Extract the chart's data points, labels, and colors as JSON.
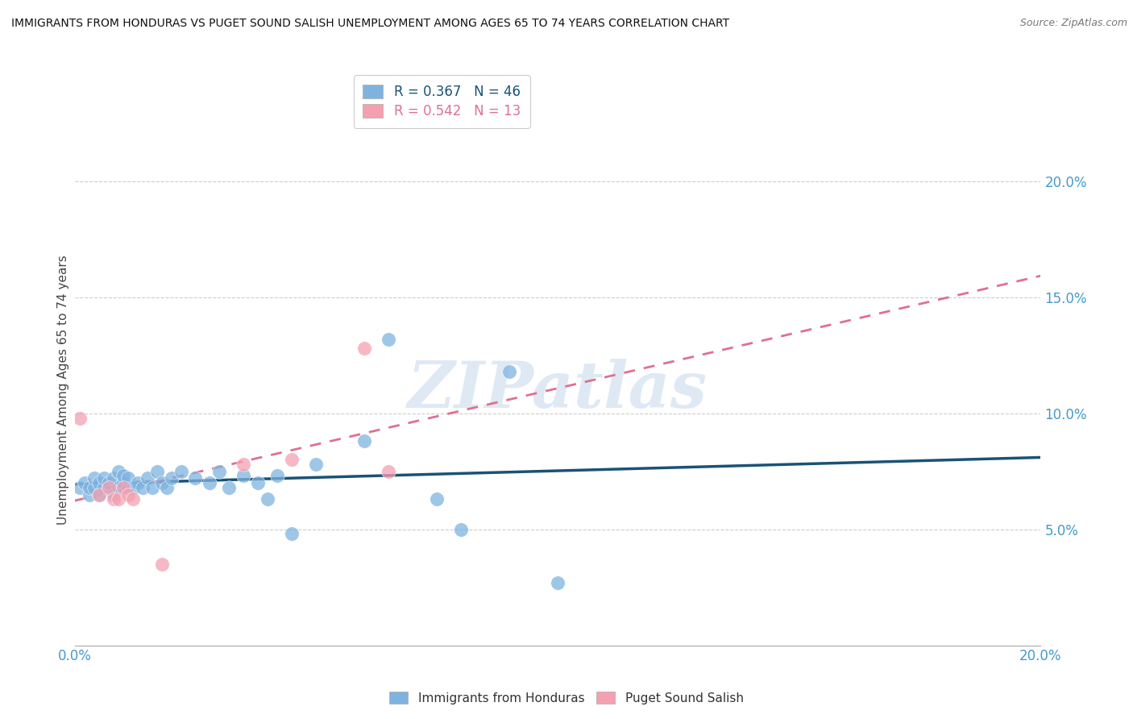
{
  "title": "IMMIGRANTS FROM HONDURAS VS PUGET SOUND SALISH UNEMPLOYMENT AMONG AGES 65 TO 74 YEARS CORRELATION CHART",
  "source": "Source: ZipAtlas.com",
  "ylabel": "Unemployment Among Ages 65 to 74 years",
  "xlim": [
    0.0,
    0.2
  ],
  "ylim": [
    0.0,
    0.22
  ],
  "yticks": [
    0.05,
    0.1,
    0.15,
    0.2
  ],
  "ytick_labels": [
    "5.0%",
    "10.0%",
    "15.0%",
    "20.0%"
  ],
  "blue_R": 0.367,
  "blue_N": 46,
  "pink_R": 0.542,
  "pink_N": 13,
  "blue_color": "#7eb3e0",
  "pink_color": "#f4a0b0",
  "blue_line_color": "#1a5276",
  "pink_line_color": "#e07090",
  "tick_color": "#4499cc",
  "watermark": "ZIPatlas",
  "blue_points": [
    [
      0.001,
      0.068
    ],
    [
      0.002,
      0.07
    ],
    [
      0.003,
      0.065
    ],
    [
      0.003,
      0.068
    ],
    [
      0.004,
      0.068
    ],
    [
      0.004,
      0.072
    ],
    [
      0.005,
      0.065
    ],
    [
      0.005,
      0.07
    ],
    [
      0.006,
      0.068
    ],
    [
      0.006,
      0.072
    ],
    [
      0.007,
      0.068
    ],
    [
      0.007,
      0.07
    ],
    [
      0.008,
      0.065
    ],
    [
      0.008,
      0.072
    ],
    [
      0.009,
      0.068
    ],
    [
      0.009,
      0.075
    ],
    [
      0.01,
      0.07
    ],
    [
      0.01,
      0.073
    ],
    [
      0.011,
      0.068
    ],
    [
      0.011,
      0.072
    ],
    [
      0.012,
      0.068
    ],
    [
      0.013,
      0.07
    ],
    [
      0.014,
      0.068
    ],
    [
      0.015,
      0.072
    ],
    [
      0.016,
      0.068
    ],
    [
      0.017,
      0.075
    ],
    [
      0.018,
      0.07
    ],
    [
      0.019,
      0.068
    ],
    [
      0.02,
      0.072
    ],
    [
      0.022,
      0.075
    ],
    [
      0.025,
      0.072
    ],
    [
      0.028,
      0.07
    ],
    [
      0.03,
      0.075
    ],
    [
      0.032,
      0.068
    ],
    [
      0.035,
      0.073
    ],
    [
      0.038,
      0.07
    ],
    [
      0.04,
      0.063
    ],
    [
      0.042,
      0.073
    ],
    [
      0.045,
      0.048
    ],
    [
      0.05,
      0.078
    ],
    [
      0.06,
      0.088
    ],
    [
      0.065,
      0.132
    ],
    [
      0.075,
      0.063
    ],
    [
      0.08,
      0.05
    ],
    [
      0.09,
      0.118
    ],
    [
      0.1,
      0.027
    ]
  ],
  "pink_points": [
    [
      0.001,
      0.098
    ],
    [
      0.005,
      0.065
    ],
    [
      0.007,
      0.068
    ],
    [
      0.008,
      0.063
    ],
    [
      0.009,
      0.063
    ],
    [
      0.01,
      0.068
    ],
    [
      0.011,
      0.065
    ],
    [
      0.012,
      0.063
    ],
    [
      0.018,
      0.035
    ],
    [
      0.035,
      0.078
    ],
    [
      0.045,
      0.08
    ],
    [
      0.06,
      0.128
    ],
    [
      0.065,
      0.075
    ]
  ]
}
